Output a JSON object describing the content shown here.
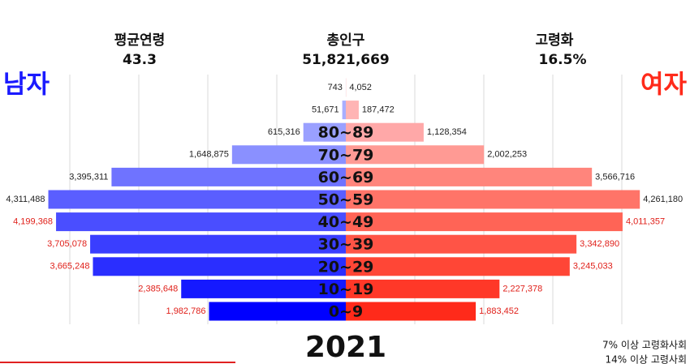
{
  "chart_data": {
    "type": "pyramid",
    "stats": [
      {
        "label": "평균연령",
        "value": "43.3"
      },
      {
        "label": "총인구",
        "value": "51,821,669"
      },
      {
        "label": "고령화",
        "value": "16.5%"
      }
    ],
    "year": "2021",
    "notes": [
      "7% 이상 고령화사회",
      "14% 이상 고령사회"
    ],
    "categories": [
      null,
      null,
      "80~89",
      "70~79",
      "60~69",
      "50~59",
      "40~49",
      "30~39",
      "20~29",
      "10~19",
      "0~9"
    ],
    "xlim": [
      0,
      5000000
    ],
    "xticks": [
      1000000,
      2000000,
      3000000,
      4000000
    ],
    "grid": true,
    "series": [
      {
        "name": "남자",
        "side": "left",
        "color": "#1a1aff",
        "values": [
          743,
          51671,
          615316,
          1648875,
          3395311,
          4311488,
          4199368,
          3705078,
          3665248,
          2385648,
          1982786
        ],
        "value_labels": [
          "743",
          "51,671",
          "615,316",
          "1,648,875",
          "3,395,311",
          "4,311,488",
          "4,199,368",
          "3,705,078",
          "3,665,248",
          "2,385,648",
          "1,982,786"
        ],
        "colors": [
          "#b4b8ff",
          "#a8aeff",
          "#9aa0ff",
          "#8a90ff",
          "#6f73ff",
          "#5a5eff",
          "#4a4eff",
          "#3a3eff",
          "#2a2eff",
          "#1519ff",
          "#0000ff"
        ],
        "label_colors": [
          "#222222",
          "#222222",
          "#222222",
          "#222222",
          "#222222",
          "#222222",
          "#e0201a",
          "#e0201a",
          "#e0201a",
          "#e0201a",
          "#e0201a"
        ]
      },
      {
        "name": "여자",
        "side": "right",
        "color": "#ff2a1a",
        "values": [
          4052,
          187472,
          1128354,
          2002253,
          3566716,
          4261180,
          4011357,
          3342890,
          3245033,
          2227378,
          1883452
        ],
        "value_labels": [
          "4,052",
          "187,472",
          "1,128,354",
          "2,002,253",
          "3,566,716",
          "4,261,180",
          "4,011,357",
          "3,342,890",
          "3,245,033",
          "2,227,378",
          "1,883,452"
        ],
        "colors": [
          "#ffc0c0",
          "#ffb4b4",
          "#ffa8a8",
          "#ff9a94",
          "#ff857c",
          "#ff7468",
          "#ff6456",
          "#ff5446",
          "#ff4636",
          "#ff3828",
          "#ff2a1a"
        ],
        "label_colors": [
          "#222222",
          "#222222",
          "#222222",
          "#222222",
          "#222222",
          "#222222",
          "#e0201a",
          "#e0201a",
          "#e0201a",
          "#e0201a",
          "#e0201a"
        ]
      }
    ]
  }
}
